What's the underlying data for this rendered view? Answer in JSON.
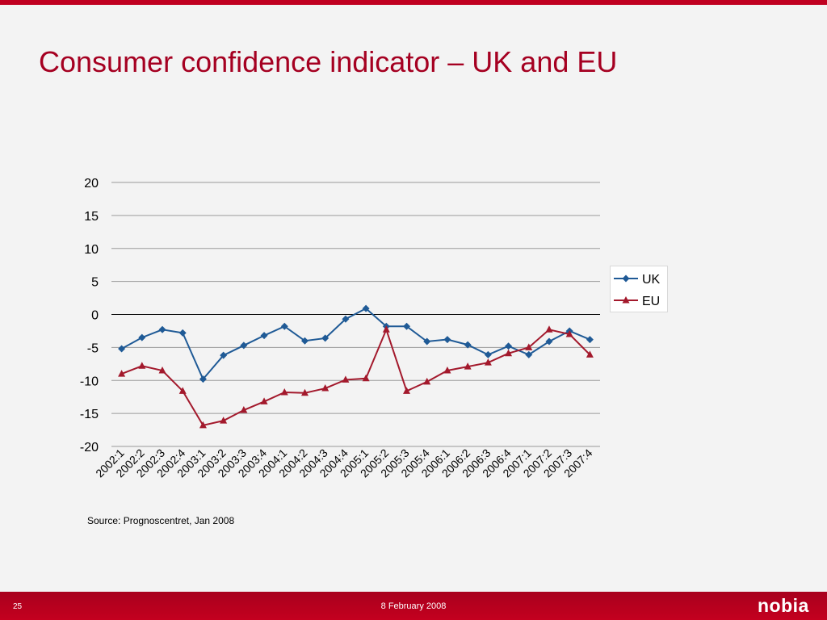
{
  "slide": {
    "title": "Consumer confidence indicator – UK and EU",
    "source": "Source: Prognoscentret, Jan 2008",
    "page_number": "25",
    "date": "8 February 2008",
    "logo_text": "nobia"
  },
  "colors": {
    "accent": "#c00020",
    "title": "#a50021",
    "uk": "#1f5a96",
    "eu": "#a3192c"
  },
  "chart_data": {
    "type": "line",
    "categories": [
      "2002:1",
      "2002:2",
      "2002:3",
      "2002:4",
      "2003:1",
      "2003:2",
      "2003:3",
      "2003:4",
      "2004:1",
      "2004:2",
      "2004:3",
      "2004:4",
      "2005:1",
      "2005:2",
      "2005:3",
      "2005:4",
      "2006:1",
      "2006:2",
      "2006:3",
      "2006:4",
      "2007:1",
      "2007:2",
      "2007:3",
      "2007:4"
    ],
    "series": [
      {
        "name": "UK",
        "marker": "diamond",
        "values": [
          -5.2,
          -3.5,
          -2.3,
          -2.8,
          -9.8,
          -6.2,
          -4.7,
          -3.2,
          -1.8,
          -4.0,
          -3.6,
          -0.7,
          0.9,
          -1.8,
          -1.8,
          -4.1,
          -3.8,
          -4.6,
          -6.1,
          -4.8,
          -6.1,
          -4.1,
          -2.5,
          -3.8
        ]
      },
      {
        "name": "EU",
        "marker": "triangle",
        "values": [
          -9.0,
          -7.8,
          -8.5,
          -11.6,
          -16.8,
          -16.1,
          -14.5,
          -13.2,
          -11.8,
          -11.9,
          -11.2,
          -9.9,
          -9.7,
          -2.3,
          -11.6,
          -10.2,
          -8.5,
          -7.9,
          -7.3,
          -5.9,
          -5.0,
          -2.3,
          -3.0,
          -6.1
        ]
      }
    ],
    "yticks": [
      20,
      15,
      10,
      5,
      0,
      -5,
      -10,
      -15,
      -20
    ],
    "ylim": [
      -20,
      20
    ],
    "grid": true,
    "legend_position": "right"
  }
}
